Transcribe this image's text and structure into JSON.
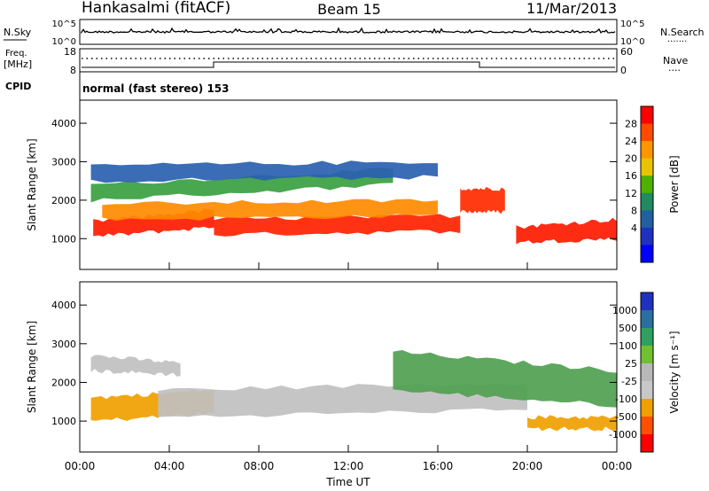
{
  "header": {
    "station": "Hankasalmi (fitACF)",
    "beam": "Beam 15",
    "date": "11/Mar/2013"
  },
  "top_panels": {
    "nsky": {
      "label": "N.Sky",
      "ticks_left": [
        "10^5",
        "10^0"
      ],
      "ticks_right": [
        "10^5",
        "10^0"
      ],
      "right_label": "N.Search",
      "right_dots": "......."
    },
    "freq": {
      "label_line1": "Freq.",
      "label_line2": "[MHz]",
      "ticks_left": [
        "18",
        "8"
      ],
      "ticks_right": [
        "60",
        "0"
      ],
      "right_label": "Nave",
      "right_dots": "...."
    },
    "cpid": {
      "label": "CPID",
      "text": "normal (fast stereo) 153"
    }
  },
  "chart_data": [
    {
      "type": "heatmap",
      "name": "power",
      "ylabel": "Slant Range [km]",
      "xlabel": "",
      "ylim": [
        200,
        4600
      ],
      "xlim": [
        0,
        24
      ],
      "yticks": [
        "4000",
        "3000",
        "2000",
        "1000"
      ],
      "colorbar": {
        "label": "Power [dB]",
        "ticks": [
          "28",
          "24",
          "20",
          "16",
          "12",
          "8",
          "4"
        ],
        "colors": [
          "#ff0000",
          "#ff4a00",
          "#ff9600",
          "#e8c400",
          "#50b000",
          "#208a60",
          "#2060a0",
          "#2030c0",
          "#0000ff"
        ]
      },
      "bands": [
        {
          "x": [
            0.6,
            6.0
          ],
          "y_low": [
            1050,
            1300
          ],
          "y_high": [
            1450,
            1750
          ],
          "color": "#ff1a00"
        },
        {
          "x": [
            6.0,
            17.0
          ],
          "y_low": [
            1100,
            1200
          ],
          "y_high": [
            1500,
            1600
          ],
          "color": "#ff2200"
        },
        {
          "x": [
            17.0,
            19.0
          ],
          "y_low": [
            1700,
            1700
          ],
          "y_high": [
            2300,
            2300
          ],
          "color": "#ff2a00"
        },
        {
          "x": [
            19.5,
            24.0
          ],
          "y_low": [
            900,
            1000
          ],
          "y_high": [
            1300,
            1500
          ],
          "color": "#ff1a00"
        },
        {
          "x": [
            1.0,
            16.0
          ],
          "y_low": [
            1500,
            1600
          ],
          "y_high": [
            1900,
            2000
          ],
          "color": "#ff8a00"
        },
        {
          "x": [
            0.5,
            14.0
          ],
          "y_low": [
            2000,
            2400
          ],
          "y_high": [
            2400,
            2800
          ],
          "color": "#38a040"
        },
        {
          "x": [
            0.5,
            16.0
          ],
          "y_low": [
            2500,
            2600
          ],
          "y_high": [
            2900,
            3000
          ],
          "color": "#2a5fb0"
        }
      ]
    },
    {
      "type": "heatmap",
      "name": "velocity",
      "ylabel": "Slant Range [km]",
      "xlabel": "Time UT",
      "ylim": [
        200,
        4600
      ],
      "xlim": [
        0,
        24
      ],
      "yticks": [
        "4000",
        "3000",
        "2000",
        "1000"
      ],
      "xticks": [
        "00:00",
        "04:00",
        "08:00",
        "12:00",
        "16:00",
        "20:00",
        "00:00"
      ],
      "colorbar": {
        "label": "Velocity [m s⁻¹]",
        "ticks": [
          "1000",
          "500",
          "100",
          "25",
          "-25",
          "-100",
          "-500",
          "-1000"
        ],
        "colors": [
          "#2030c0",
          "#2a6fa0",
          "#30a060",
          "#70c030",
          "#b8b8b8",
          "#c8c8c8",
          "#f0a000",
          "#ff5000",
          "#ff0000"
        ]
      },
      "bands": [
        {
          "x": [
            0.5,
            6.0
          ],
          "y_low": [
            1000,
            1200
          ],
          "y_high": [
            1600,
            1800
          ],
          "color": "#f0a000"
        },
        {
          "x": [
            3.5,
            20.0
          ],
          "y_low": [
            1100,
            1300
          ],
          "y_high": [
            1800,
            2000
          ],
          "color": "#c0c0c0"
        },
        {
          "x": [
            0.5,
            4.5
          ],
          "y_low": [
            2300,
            2200
          ],
          "y_high": [
            2700,
            2500
          ],
          "color": "#c0c0c0"
        },
        {
          "x": [
            14.0,
            24.0
          ],
          "y_low": [
            1800,
            1400
          ],
          "y_high": [
            2800,
            2300
          ],
          "color": "#50a050"
        },
        {
          "x": [
            20.0,
            24.0
          ],
          "y_low": [
            800,
            800
          ],
          "y_high": [
            1100,
            1100
          ],
          "color": "#f0a000"
        }
      ]
    }
  ]
}
